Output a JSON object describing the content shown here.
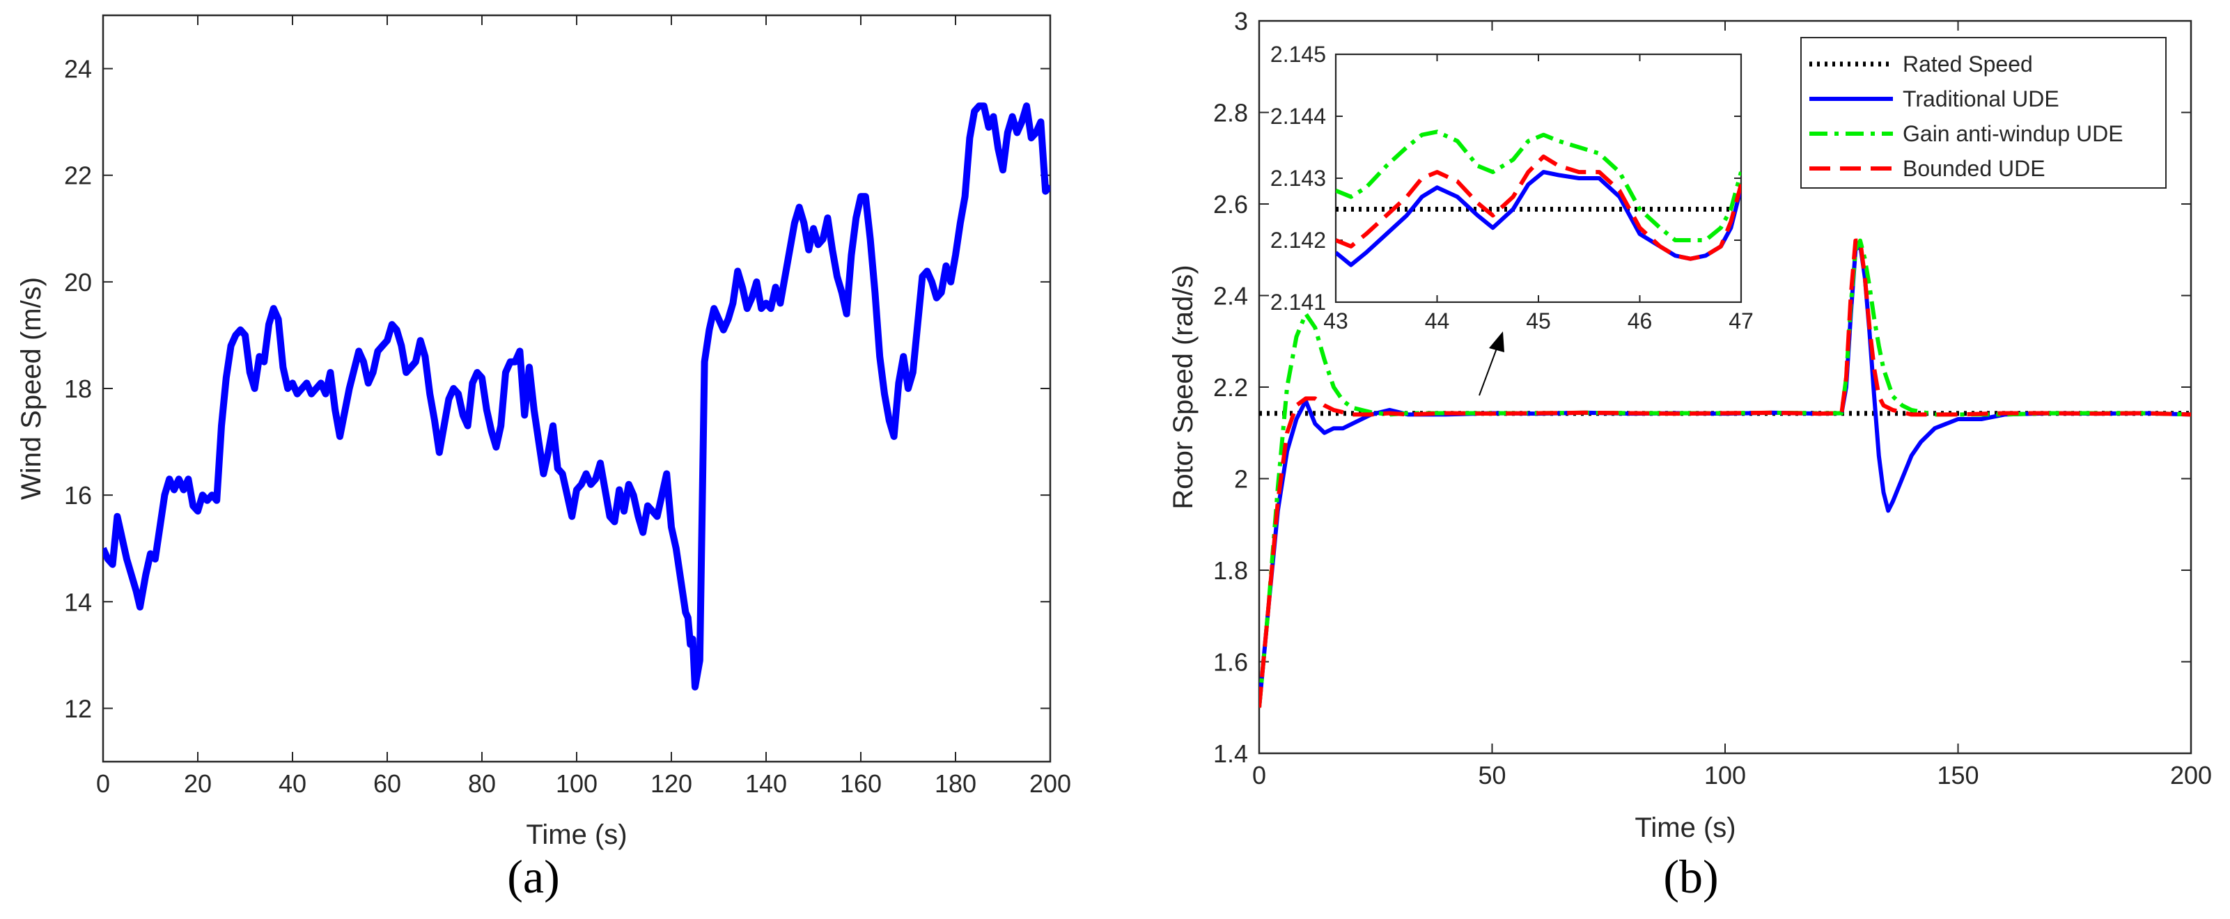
{
  "panels": [
    {
      "id": "a",
      "label": "(a)"
    },
    {
      "id": "b",
      "label": "(b)"
    }
  ],
  "colors": {
    "wind": "#0000ff",
    "rated": "#000000",
    "traditional": "#0000ff",
    "gain": "#00ee00",
    "bounded": "#ff0000",
    "axes": "#262626"
  },
  "chart_data": [
    {
      "id": "a",
      "type": "line",
      "title": "",
      "xlabel": "Time (s)",
      "ylabel": "Wind Speed (m/s)",
      "xlim": [
        0,
        200
      ],
      "ylim": [
        11,
        25
      ],
      "xticks": [
        0,
        20,
        40,
        60,
        80,
        100,
        120,
        140,
        160,
        180,
        200
      ],
      "yticks": [
        12,
        14,
        16,
        18,
        20,
        22,
        24
      ],
      "grid": false,
      "series": [
        {
          "color": "#0000ff",
          "x": [
            0,
            1,
            2,
            3,
            4,
            5,
            6,
            7,
            7.8,
            9,
            10,
            11,
            12,
            13,
            14,
            15,
            16,
            17,
            18,
            19,
            20,
            21,
            22,
            23,
            24,
            25,
            26,
            27,
            28,
            29,
            30,
            31,
            32,
            33,
            34,
            35,
            36,
            37,
            38,
            39,
            40,
            41,
            42,
            43,
            44,
            45,
            46,
            47,
            48,
            49,
            50,
            52,
            54,
            55,
            56,
            57,
            58,
            59,
            60,
            61,
            62,
            63,
            64,
            65,
            66,
            67,
            68,
            69,
            70,
            71,
            72,
            73,
            74,
            75,
            76,
            77,
            78,
            79,
            80,
            81,
            82,
            83,
            84,
            85,
            86,
            87,
            88,
            89,
            90,
            91,
            92,
            93,
            94,
            95,
            96,
            97,
            98,
            99,
            100,
            101,
            102,
            103,
            104,
            105,
            106,
            107,
            108,
            109,
            110,
            111,
            112,
            113,
            114,
            115,
            116,
            117,
            118,
            119,
            120,
            121,
            122,
            123,
            123.5,
            124,
            124.5,
            125,
            126,
            127,
            128,
            129,
            130,
            131,
            132,
            133,
            134,
            135,
            136,
            137,
            138,
            139,
            140,
            141,
            142,
            143,
            144,
            145,
            146,
            147,
            148,
            149,
            150,
            151,
            152,
            153,
            154,
            155,
            156,
            157,
            158,
            159,
            160,
            161,
            162,
            163,
            164,
            165,
            166,
            167,
            168,
            169,
            170,
            171,
            172,
            173,
            174,
            175,
            176,
            177,
            178,
            179,
            180,
            181,
            182,
            183,
            184,
            185,
            186,
            187,
            188,
            189,
            190,
            191,
            192,
            193,
            194,
            195,
            196,
            197,
            198,
            199,
            200
          ],
          "y": [
            15.0,
            14.8,
            14.7,
            15.6,
            15.2,
            14.8,
            14.5,
            14.2,
            13.9,
            14.5,
            14.9,
            14.8,
            15.4,
            16.0,
            16.3,
            16.1,
            16.3,
            16.1,
            16.3,
            15.8,
            15.7,
            16.0,
            15.9,
            16.0,
            15.9,
            17.3,
            18.2,
            18.8,
            19.0,
            19.1,
            19.0,
            18.3,
            18.0,
            18.6,
            18.5,
            19.2,
            19.5,
            19.3,
            18.4,
            18.0,
            18.1,
            17.9,
            18.0,
            18.1,
            17.9,
            18.0,
            18.1,
            17.9,
            18.3,
            17.6,
            17.1,
            18.0,
            18.7,
            18.5,
            18.1,
            18.3,
            18.7,
            18.8,
            18.9,
            19.2,
            19.1,
            18.8,
            18.3,
            18.4,
            18.5,
            18.9,
            18.6,
            17.9,
            17.4,
            16.8,
            17.3,
            17.8,
            18.0,
            17.9,
            17.5,
            17.3,
            18.1,
            18.3,
            18.2,
            17.6,
            17.2,
            16.9,
            17.3,
            18.3,
            18.5,
            18.5,
            18.7,
            17.5,
            18.4,
            17.6,
            17.0,
            16.4,
            16.8,
            17.3,
            16.5,
            16.4,
            16.0,
            15.6,
            16.1,
            16.2,
            16.4,
            16.2,
            16.3,
            16.6,
            16.1,
            15.6,
            15.5,
            16.1,
            15.7,
            16.2,
            16.0,
            15.6,
            15.3,
            15.8,
            15.7,
            15.6,
            16.0,
            16.4,
            15.4,
            15.0,
            14.4,
            13.8,
            13.7,
            13.2,
            13.3,
            12.4,
            12.9,
            18.5,
            19.1,
            19.5,
            19.3,
            19.1,
            19.3,
            19.6,
            20.2,
            19.9,
            19.5,
            19.7,
            20.0,
            19.5,
            19.6,
            19.5,
            19.9,
            19.6,
            20.1,
            20.6,
            21.1,
            21.4,
            21.1,
            20.6,
            21.0,
            20.7,
            20.8,
            21.2,
            20.6,
            20.1,
            19.8,
            19.4,
            20.5,
            21.2,
            21.6,
            21.6,
            20.8,
            19.8,
            18.6,
            17.9,
            17.4,
            17.1,
            18.1,
            18.6,
            18.0,
            18.3,
            19.2,
            20.1,
            20.2,
            20.0,
            19.7,
            19.8,
            20.3,
            20.0,
            20.5,
            21.1,
            21.6,
            22.7,
            23.2,
            23.3,
            23.3,
            22.9,
            23.1,
            22.5,
            22.1,
            22.8,
            23.1,
            22.8,
            23.0,
            23.3,
            22.7,
            22.8,
            23.0,
            21.7,
            21.8
          ]
        }
      ]
    },
    {
      "id": "b",
      "type": "line",
      "title": "",
      "xlabel": "Time (s)",
      "ylabel": "Rotor Speed (rad/s)",
      "xlim": [
        0,
        200
      ],
      "ylim": [
        1.4,
        3
      ],
      "xticks": [
        0,
        50,
        100,
        150,
        200
      ],
      "yticks": [
        1.4,
        1.6,
        1.8,
        2,
        2.2,
        2.4,
        2.6,
        2.8,
        3
      ],
      "grid": false,
      "legend": {
        "position": "top-right",
        "entries": [
          "Rated Speed",
          "Traditional UDE",
          "Gain anti-windup UDE",
          "Bounded UDE"
        ]
      },
      "series": [
        {
          "name": "Rated Speed",
          "color": "#000000",
          "style": "dotted",
          "x": [
            0,
            200
          ],
          "y": [
            2.1425,
            2.1425
          ]
        },
        {
          "name": "Traditional UDE",
          "color": "#0000ff",
          "style": "solid",
          "x": [
            0,
            2,
            4,
            6,
            8,
            10,
            12,
            14,
            16,
            18,
            20,
            24,
            28,
            32,
            36,
            40,
            50,
            60,
            70,
            80,
            90,
            100,
            110,
            120,
            125,
            126,
            127,
            128,
            129,
            130,
            131,
            132,
            133,
            134,
            135,
            136,
            138,
            140,
            142,
            145,
            150,
            155,
            160,
            170,
            180,
            190,
            200
          ],
          "y": [
            1.5,
            1.72,
            1.93,
            2.06,
            2.13,
            2.17,
            2.12,
            2.1,
            2.11,
            2.11,
            2.12,
            2.14,
            2.15,
            2.14,
            2.14,
            2.14,
            2.143,
            2.142,
            2.144,
            2.142,
            2.143,
            2.142,
            2.144,
            2.142,
            2.143,
            2.2,
            2.36,
            2.5,
            2.51,
            2.44,
            2.32,
            2.18,
            2.05,
            1.97,
            1.93,
            1.95,
            2.0,
            2.05,
            2.08,
            2.11,
            2.13,
            2.13,
            2.14,
            2.143,
            2.142,
            2.143,
            2.14
          ]
        },
        {
          "name": "Gain anti-windup UDE",
          "color": "#00ee00",
          "style": "dashdot",
          "x": [
            0,
            2,
            4,
            6,
            8,
            10,
            12,
            14,
            16,
            18,
            20,
            22,
            24,
            28,
            32,
            40,
            50,
            60,
            70,
            80,
            90,
            100,
            110,
            120,
            125,
            126,
            127,
            128,
            129,
            130,
            131,
            132,
            133,
            134,
            136,
            138,
            140,
            145,
            150,
            160,
            170,
            180,
            190,
            200
          ],
          "y": [
            1.5,
            1.72,
            1.98,
            2.2,
            2.31,
            2.36,
            2.33,
            2.26,
            2.2,
            2.17,
            2.155,
            2.15,
            2.145,
            2.14,
            2.143,
            2.143,
            2.143,
            2.143,
            2.144,
            2.143,
            2.143,
            2.143,
            2.144,
            2.143,
            2.143,
            2.22,
            2.38,
            2.5,
            2.52,
            2.48,
            2.42,
            2.35,
            2.29,
            2.24,
            2.18,
            2.16,
            2.15,
            2.14,
            2.14,
            2.14,
            2.143,
            2.143,
            2.143,
            2.14
          ]
        },
        {
          "name": "Bounded UDE",
          "color": "#ff0000",
          "style": "dashed",
          "x": [
            0,
            2,
            4,
            6,
            8,
            10,
            12,
            14,
            16,
            18,
            20,
            24,
            28,
            32,
            40,
            50,
            60,
            70,
            80,
            90,
            100,
            110,
            120,
            125,
            126,
            127,
            128,
            129,
            130,
            131,
            132,
            133,
            134,
            136,
            140,
            145,
            150,
            160,
            170,
            180,
            190,
            200
          ],
          "y": [
            1.5,
            1.72,
            1.95,
            2.1,
            2.16,
            2.175,
            2.175,
            2.16,
            2.15,
            2.145,
            2.14,
            2.14,
            2.143,
            2.14,
            2.143,
            2.142,
            2.143,
            2.144,
            2.143,
            2.142,
            2.143,
            2.144,
            2.142,
            2.143,
            2.22,
            2.4,
            2.52,
            2.52,
            2.44,
            2.33,
            2.24,
            2.18,
            2.16,
            2.15,
            2.14,
            2.14,
            2.14,
            2.143,
            2.143,
            2.142,
            2.143,
            2.14
          ]
        }
      ]
    },
    {
      "id": "b-inset",
      "type": "line",
      "title": "",
      "xlabel": "",
      "ylabel": "",
      "xlim": [
        43,
        47
      ],
      "ylim": [
        2.141,
        2.145
      ],
      "xticks": [
        43,
        44,
        45,
        46,
        47
      ],
      "yticks": [
        2.141,
        2.142,
        2.143,
        2.144,
        2.145
      ],
      "grid": false,
      "series": [
        {
          "name": "Rated Speed",
          "color": "#000000",
          "style": "dotted",
          "x": [
            43,
            47
          ],
          "y": [
            2.1425,
            2.1425
          ]
        },
        {
          "name": "Traditional UDE",
          "color": "#0000ff",
          "style": "solid",
          "x": [
            43,
            43.15,
            43.3,
            43.5,
            43.7,
            43.85,
            44.0,
            44.2,
            44.4,
            44.55,
            44.75,
            44.9,
            45.05,
            45.2,
            45.4,
            45.6,
            45.8,
            46.0,
            46.2,
            46.35,
            46.5,
            46.65,
            46.8,
            46.9,
            47.0
          ],
          "y": [
            2.1418,
            2.1416,
            2.1418,
            2.1421,
            2.1424,
            2.1427,
            2.14285,
            2.1427,
            2.1424,
            2.1422,
            2.1425,
            2.1429,
            2.1431,
            2.14305,
            2.143,
            2.143,
            2.1427,
            2.1421,
            2.1419,
            2.14175,
            2.1417,
            2.14175,
            2.1419,
            2.1422,
            2.14285
          ]
        },
        {
          "name": "Gain anti-windup UDE",
          "color": "#00ee00",
          "style": "dashdot",
          "x": [
            43,
            43.15,
            43.3,
            43.5,
            43.7,
            43.85,
            44.0,
            44.2,
            44.4,
            44.55,
            44.75,
            44.9,
            45.05,
            45.2,
            45.4,
            45.6,
            45.8,
            46.0,
            46.2,
            46.35,
            46.5,
            46.65,
            46.8,
            46.9,
            47.0
          ],
          "y": [
            2.1428,
            2.1427,
            2.14285,
            2.1432,
            2.1435,
            2.1437,
            2.14375,
            2.1436,
            2.1432,
            2.1431,
            2.1433,
            2.1436,
            2.1437,
            2.1436,
            2.1435,
            2.1434,
            2.1431,
            2.1425,
            2.1422,
            2.142,
            2.142,
            2.142,
            2.1422,
            2.1425,
            2.1431
          ]
        },
        {
          "name": "Bounded UDE",
          "color": "#ff0000",
          "style": "dashed",
          "x": [
            43,
            43.15,
            43.3,
            43.5,
            43.7,
            43.85,
            44.0,
            44.2,
            44.4,
            44.55,
            44.75,
            44.9,
            45.05,
            45.2,
            45.4,
            45.6,
            45.8,
            46.0,
            46.2,
            46.35,
            46.5,
            46.65,
            46.8,
            46.9,
            47.0
          ],
          "y": [
            2.142,
            2.1419,
            2.1421,
            2.1424,
            2.1427,
            2.143,
            2.1431,
            2.14295,
            2.1426,
            2.1424,
            2.1427,
            2.1431,
            2.14335,
            2.1432,
            2.1431,
            2.1431,
            2.1428,
            2.1422,
            2.1419,
            2.14175,
            2.1417,
            2.14175,
            2.1419,
            2.1423,
            2.1429
          ]
        }
      ]
    }
  ]
}
